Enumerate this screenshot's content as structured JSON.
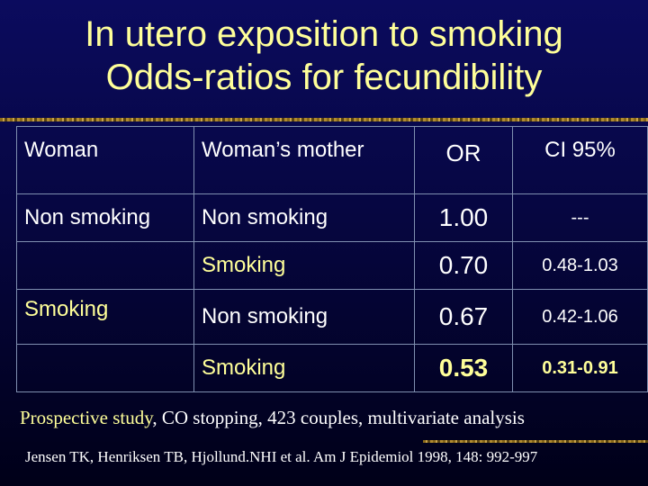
{
  "slide": {
    "title_line1": "In utero exposition to smoking",
    "title_line2": "Odds-ratios for fecundibility",
    "colors": {
      "title": "#ffff99",
      "text": "#ffffff",
      "background": "#060640"
    }
  },
  "table": {
    "headers": [
      "Woman",
      "Woman’s mother",
      "OR",
      "CI 95%"
    ],
    "rows": [
      {
        "woman": "Non smoking",
        "mother": "Non smoking",
        "or": "1.00",
        "ci": "---"
      },
      {
        "woman": "",
        "mother": "Smoking",
        "or": "0.70",
        "ci": "0.48-1.03"
      },
      {
        "woman": "Smoking",
        "mother": "Non smoking",
        "or": "0.67",
        "ci": "0.42-1.06"
      },
      {
        "woman": "",
        "mother": "Smoking",
        "or": "0.53",
        "ci": "0.31-0.91"
      }
    ]
  },
  "footnote": {
    "highlight": "Prospective study",
    "rest": ", CO stopping, 423 couples, multivariate analysis"
  },
  "reference": "Jensen TK, Henriksen TB, Hjollund.NHI et al. Am J Epidemiol 1998, 148: 992-997"
}
